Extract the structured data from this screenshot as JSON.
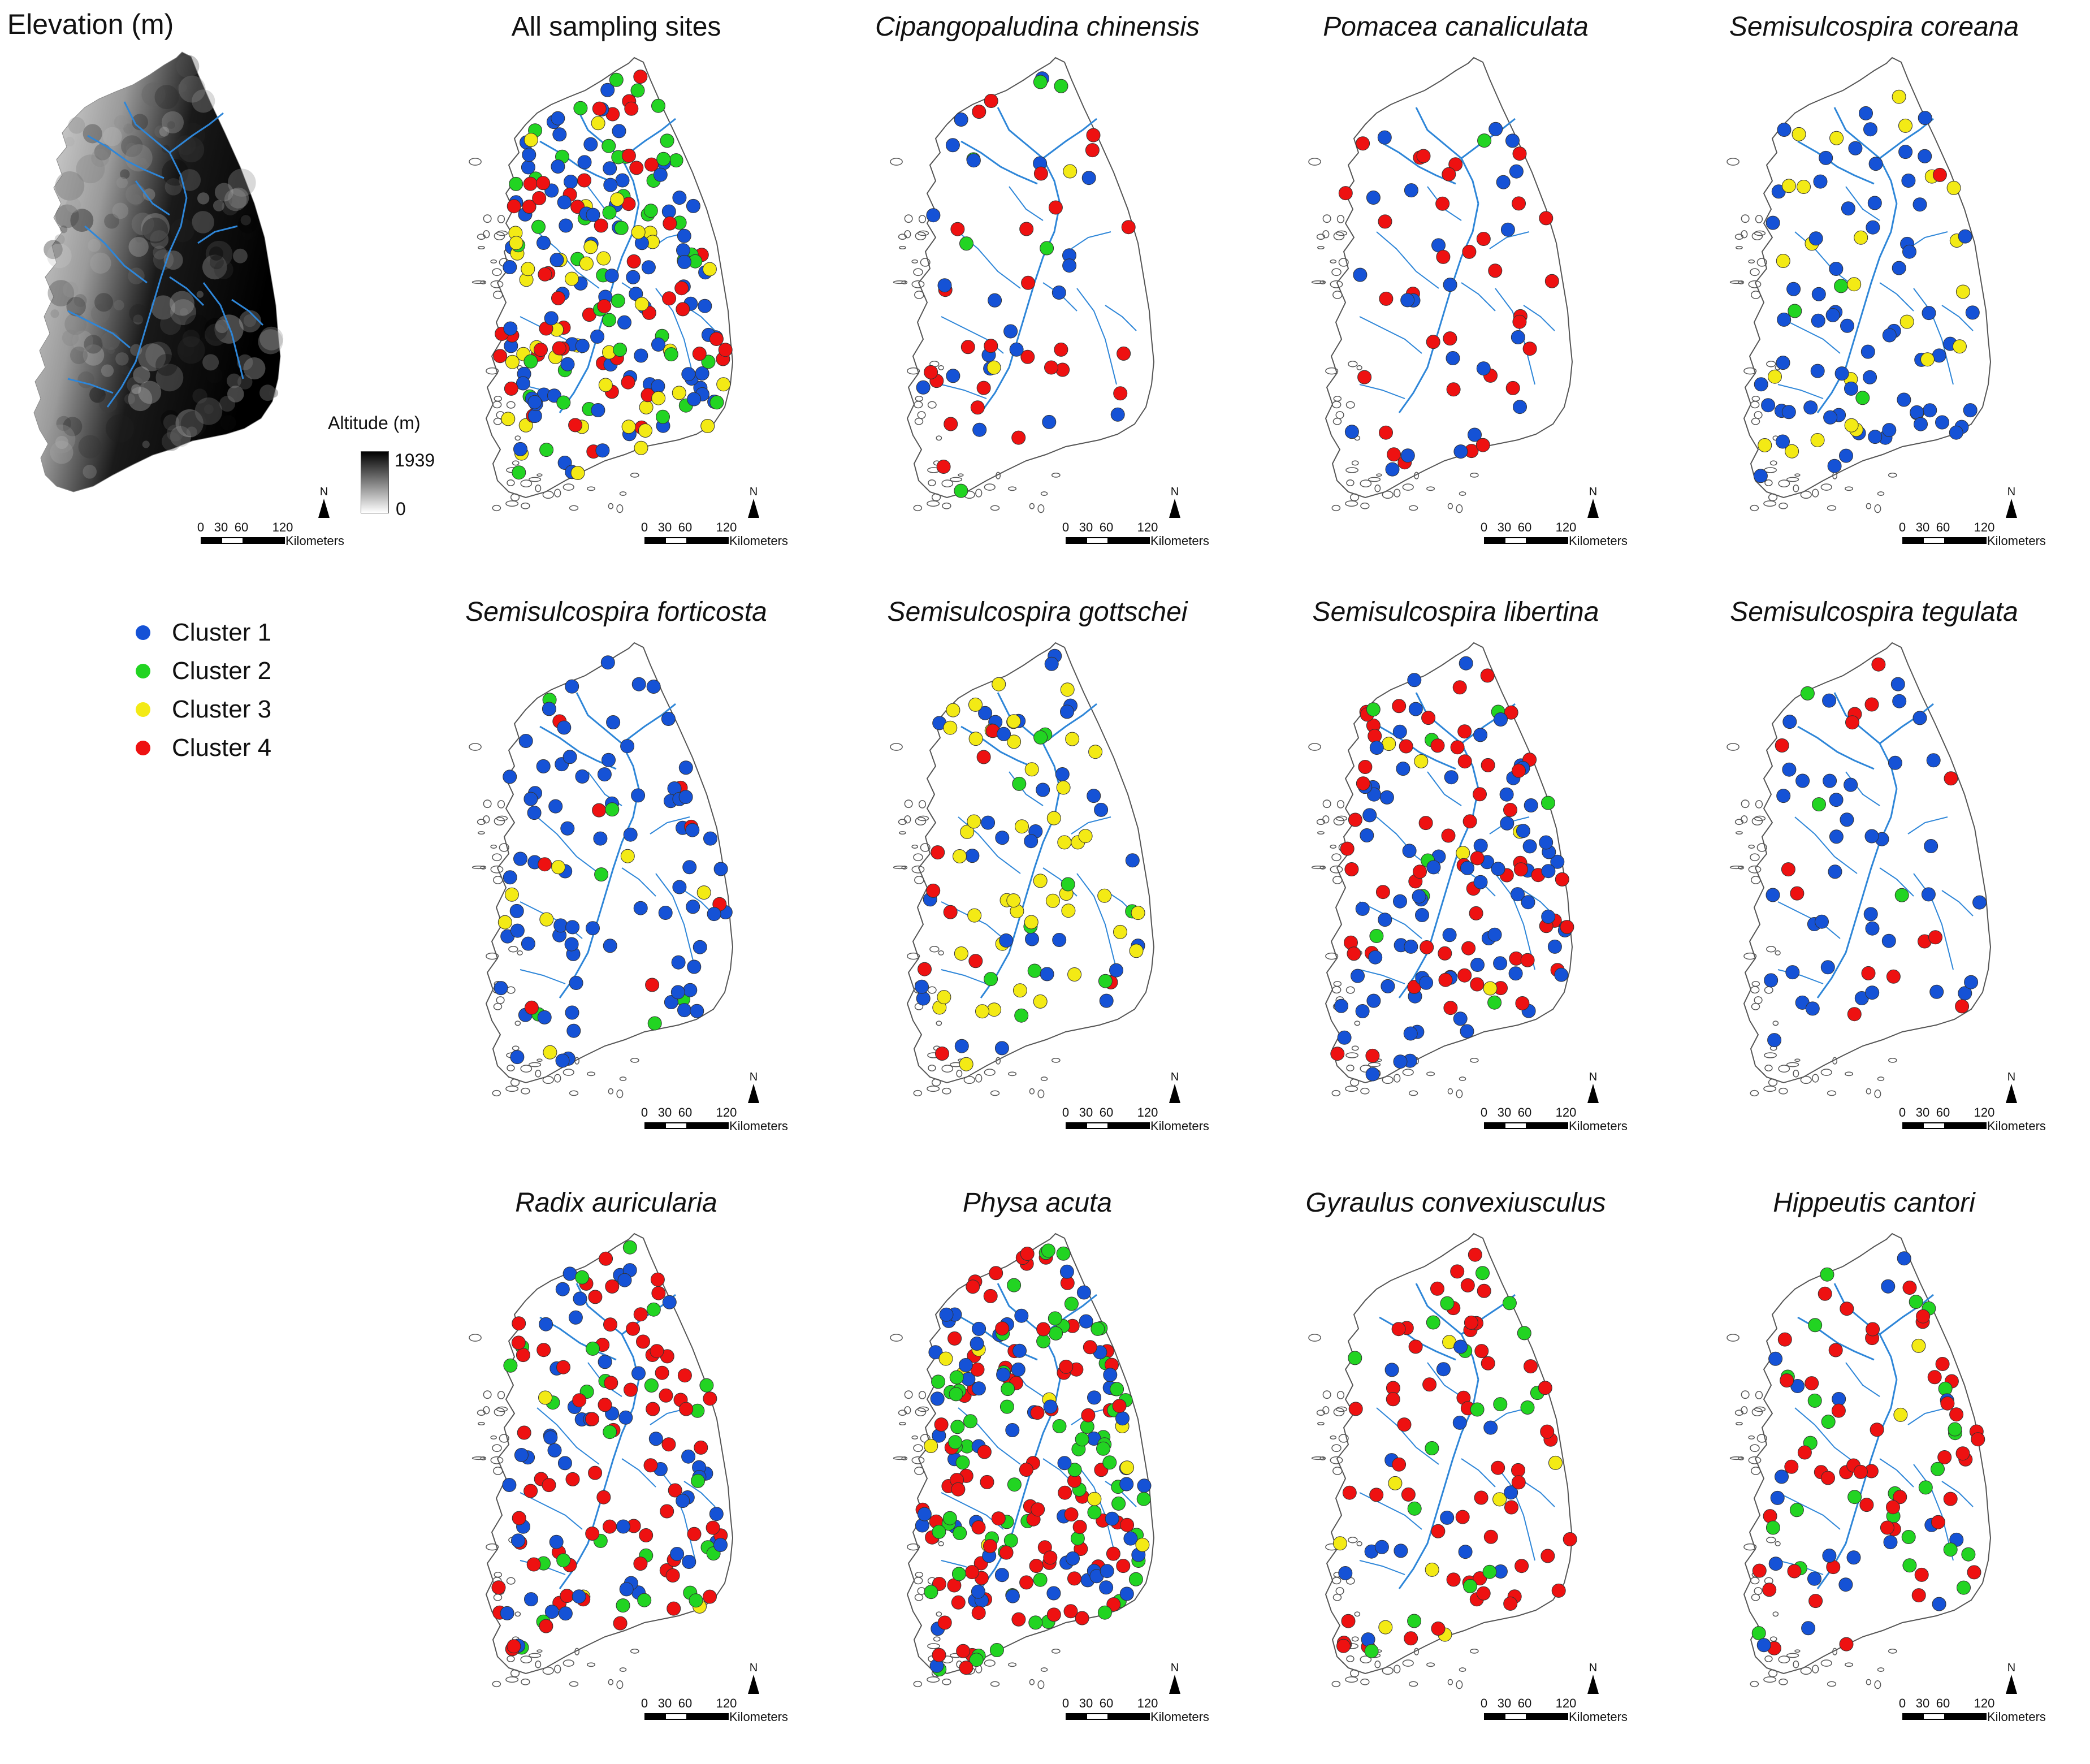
{
  "elevation_panel": {
    "title": "Elevation (m)",
    "legend_title": "Altitude (m)",
    "max_label": "1939",
    "min_label": "0"
  },
  "scale": {
    "ticks": [
      "0",
      "30",
      "60",
      "120"
    ],
    "unit": "Kilometers"
  },
  "north_label": "N",
  "legend": [
    {
      "label": "Cluster 1",
      "color": "#1552d6"
    },
    {
      "label": "Cluster 2",
      "color": "#22d422"
    },
    {
      "label": "Cluster 3",
      "color": "#f3ea15"
    },
    {
      "label": "Cluster 4",
      "color": "#ee1111"
    }
  ],
  "colors": {
    "river": "#2e86d8",
    "outline": "#555555"
  },
  "panels": [
    {
      "title": "All sampling sites",
      "style": "plain",
      "mix": [
        0.34,
        0.22,
        0.16,
        0.28
      ],
      "density": "very high"
    },
    {
      "title": "Cipangopaludina chinensis",
      "style": "species",
      "mix": [
        0.35,
        0.12,
        0.05,
        0.48
      ],
      "density": "low"
    },
    {
      "title": "Pomacea canaliculata",
      "style": "species",
      "mix": [
        0.35,
        0.05,
        0.05,
        0.55
      ],
      "density": "low"
    },
    {
      "title": "Semisulcospira coreana",
      "style": "species",
      "mix": [
        0.68,
        0.03,
        0.26,
        0.03
      ],
      "density": "medium"
    },
    {
      "title": "Semisulcospira forticosta",
      "style": "species",
      "mix": [
        0.78,
        0.06,
        0.08,
        0.08
      ],
      "density": "medium"
    },
    {
      "title": "Semisulcospira gottschei",
      "style": "species",
      "mix": [
        0.42,
        0.05,
        0.4,
        0.13
      ],
      "density": "medium"
    },
    {
      "title": "Semisulcospira libertina",
      "style": "species",
      "mix": [
        0.5,
        0.06,
        0.08,
        0.36
      ],
      "density": "high"
    },
    {
      "title": "Semisulcospira tegulata",
      "style": "species",
      "mix": [
        0.6,
        0.04,
        0.01,
        0.35
      ],
      "density": "low"
    },
    {
      "title": "Radix auricularia",
      "style": "species",
      "mix": [
        0.28,
        0.17,
        0.04,
        0.51
      ],
      "density": "high"
    },
    {
      "title": "Physa acuta",
      "style": "species",
      "mix": [
        0.27,
        0.3,
        0.05,
        0.38
      ],
      "density": "very high"
    },
    {
      "title": "Gyraulus convexiusculus",
      "style": "species",
      "mix": [
        0.2,
        0.23,
        0.1,
        0.47
      ],
      "density": "medium"
    },
    {
      "title": "Hippeutis cantori",
      "style": "species",
      "mix": [
        0.14,
        0.3,
        0.02,
        0.54
      ],
      "density": "medium"
    }
  ]
}
